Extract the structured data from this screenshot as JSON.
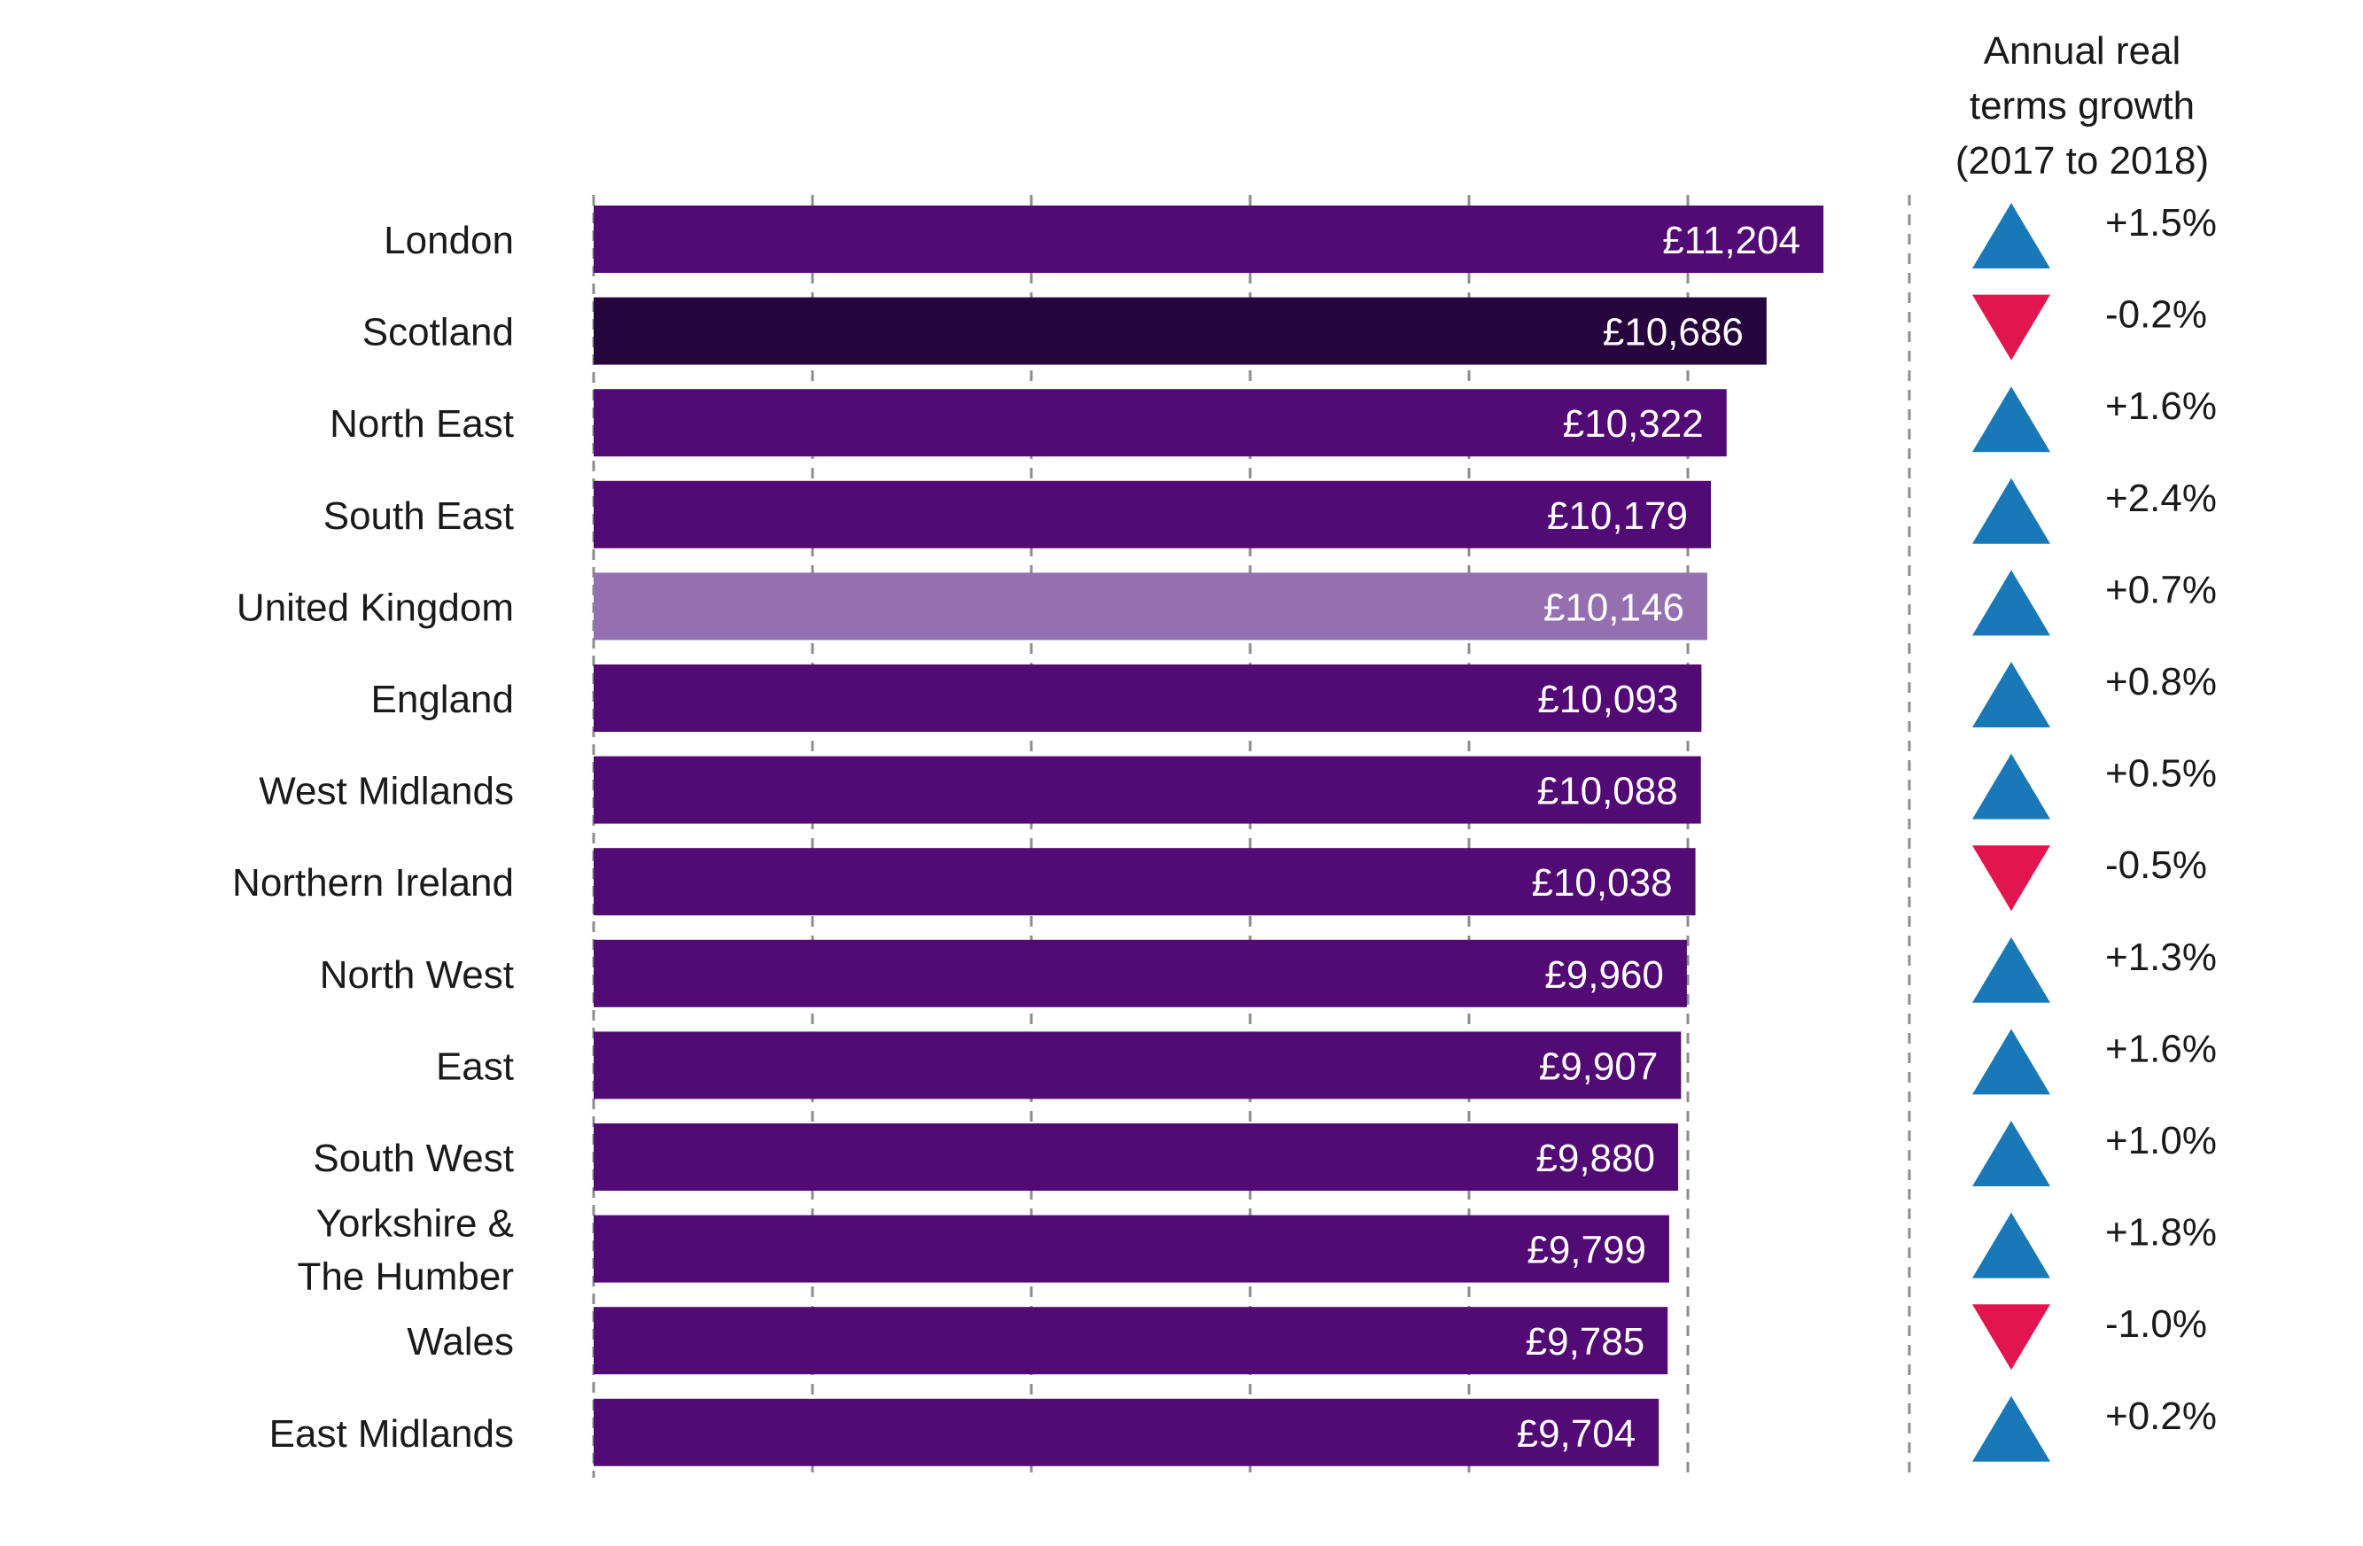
{
  "chart_data": {
    "type": "bar",
    "orientation": "horizontal",
    "categories": [
      "London",
      "Scotland",
      "North East",
      "South East",
      "United Kingdom",
      "England",
      "West Midlands",
      "Northern Ireland",
      "North West",
      "East",
      "South West",
      "Yorkshire & The Humber",
      "Wales",
      "East Midlands"
    ],
    "category_label_lines": [
      [
        "London"
      ],
      [
        "Scotland"
      ],
      [
        "North East"
      ],
      [
        "South East"
      ],
      [
        "United Kingdom"
      ],
      [
        "England"
      ],
      [
        "West Midlands"
      ],
      [
        "Northern Ireland"
      ],
      [
        "North West"
      ],
      [
        "East"
      ],
      [
        "South West"
      ],
      [
        "Yorkshire &",
        "The Humber"
      ],
      [
        "Wales"
      ],
      [
        "East Midlands"
      ]
    ],
    "values": [
      11204,
      10686,
      10322,
      10179,
      10146,
      10093,
      10088,
      10038,
      9960,
      9907,
      9880,
      9799,
      9785,
      9704
    ],
    "value_labels": [
      "£11,204",
      "£10,686",
      "£10,322",
      "£10,179",
      "£10,146",
      "£10,093",
      "£10,088",
      "£10,038",
      "£9,960",
      "£9,907",
      "£9,880",
      "£9,799",
      "£9,785",
      "£9,704"
    ],
    "xlim": [
      0,
      11204
    ],
    "grid": "vertical dashed",
    "growth": {
      "header_lines": [
        "Annual real",
        "terms growth",
        "(2017 to 2018)"
      ],
      "values": [
        1.5,
        -0.2,
        1.6,
        2.4,
        0.7,
        0.8,
        0.5,
        -0.5,
        1.3,
        1.6,
        1.0,
        1.8,
        -1.0,
        0.2
      ],
      "labels": [
        "+1.5%",
        "-0.2%",
        "+1.6%",
        "+2.4%",
        "+0.7%",
        "+0.8%",
        "+0.5%",
        "-0.5%",
        "+1.3%",
        "+1.6%",
        "+1.0%",
        "+1.8%",
        "-1.0%",
        "+0.2%"
      ]
    },
    "colors": {
      "bar": "#520a74",
      "scotland_bar": "#27053d",
      "uk_bar": "#9470b1",
      "up_arrow": "#1978b8",
      "down_arrow": "#e2164f",
      "grid": "#8c8c8c",
      "text": "#1a1a1a"
    }
  }
}
